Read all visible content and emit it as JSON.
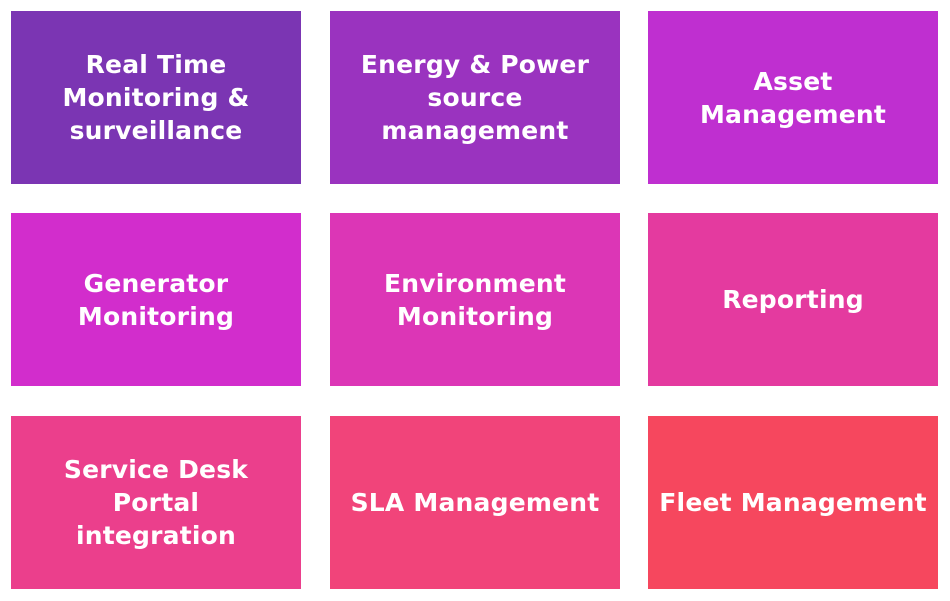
{
  "tiles": [
    {
      "label": "Real Time\nMonitoring &\nsurveillance",
      "color": "#7B35B3"
    },
    {
      "label": "Energy & Power\nsource\nmanagement",
      "color": "#9A33BF"
    },
    {
      "label": "Asset Management",
      "color": "#BF2FD0"
    },
    {
      "label": "Generator\nMonitoring",
      "color": "#D22DCC"
    },
    {
      "label": "Environment\nMonitoring",
      "color": "#DC36B6"
    },
    {
      "label": "Reporting",
      "color": "#E43A9F"
    },
    {
      "label": "Service Desk Portal\nintegration",
      "color": "#EB3F8C"
    },
    {
      "label": "SLA Management",
      "color": "#F1447A"
    },
    {
      "label": "Fleet  Management",
      "color": "#F6475E"
    }
  ]
}
